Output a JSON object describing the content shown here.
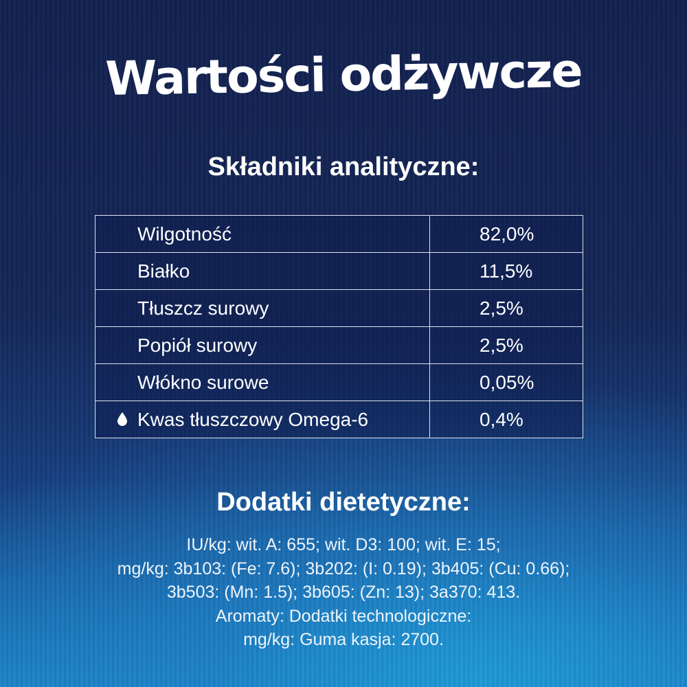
{
  "title": "Wartości odżywcze",
  "analytical": {
    "heading": "Składniki analityczne:",
    "rows": [
      {
        "name": "Wilgotność",
        "value": "82,0%"
      },
      {
        "name": "Białko",
        "value": "11,5%"
      },
      {
        "name": "Tłuszcz surowy",
        "value": "2,5%"
      },
      {
        "name": "Popiół surowy",
        "value": "2,5%"
      },
      {
        "name": "Włókno surowe",
        "value": "0,05%"
      },
      {
        "name": "Kwas tłuszczowy Omega-6",
        "value": "0,4%",
        "icon": "drop-icon"
      }
    ]
  },
  "additives": {
    "heading": "Dodatki dietetyczne:",
    "lines": [
      "IU/kg: wit. A: 655; wit. D3: 100; wit. E: 15;",
      "mg/kg: 3b103: (Fe: 7.6); 3b202: (I: 0.19); 3b405: (Cu: 0.66);",
      "3b503: (Mn: 1.5); 3b605: (Zn: 13); 3a370: 413.",
      "Aromaty: Dodatki technologiczne:",
      "mg/kg: Guma kasja: 2700."
    ]
  }
}
